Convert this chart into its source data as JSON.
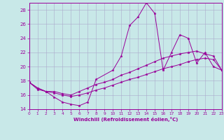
{
  "xlabel": "Windchill (Refroidissement éolien,°C)",
  "bg_color": "#c8e8e8",
  "line_color": "#990099",
  "grid_color": "#aaaacc",
  "xlim": [
    0,
    23
  ],
  "ylim": [
    14,
    29
  ],
  "yticks": [
    14,
    16,
    18,
    20,
    22,
    24,
    26,
    28
  ],
  "xticks": [
    0,
    1,
    2,
    3,
    4,
    5,
    6,
    7,
    8,
    9,
    10,
    11,
    12,
    13,
    14,
    15,
    16,
    17,
    18,
    19,
    20,
    21,
    22,
    23
  ],
  "series": [
    {
      "x": [
        0,
        1,
        2,
        3,
        4,
        5,
        6,
        7,
        8,
        10,
        11,
        12,
        13,
        14,
        15,
        16,
        17,
        18,
        19,
        20,
        21,
        22,
        23
      ],
      "y": [
        17.8,
        17.0,
        16.5,
        15.7,
        15.0,
        14.7,
        14.5,
        15.0,
        18.2,
        19.5,
        21.5,
        25.8,
        27.0,
        29.0,
        27.5,
        19.5,
        22.0,
        24.5,
        24.0,
        20.5,
        22.0,
        20.0,
        19.5
      ]
    },
    {
      "x": [
        0,
        1,
        2,
        3,
        4,
        5,
        6,
        7,
        8,
        9,
        10,
        11,
        12,
        13,
        14,
        15,
        16,
        17,
        18,
        19,
        20,
        21,
        22,
        23
      ],
      "y": [
        17.8,
        17.0,
        16.5,
        16.5,
        16.2,
        16.0,
        16.5,
        17.0,
        17.5,
        17.8,
        18.2,
        18.8,
        19.2,
        19.7,
        20.2,
        20.7,
        21.2,
        21.5,
        21.8,
        22.0,
        22.2,
        21.8,
        21.5,
        19.5
      ]
    },
    {
      "x": [
        0,
        1,
        2,
        3,
        4,
        5,
        6,
        7,
        8,
        9,
        10,
        11,
        12,
        13,
        14,
        15,
        16,
        17,
        18,
        19,
        20,
        21,
        22,
        23
      ],
      "y": [
        17.8,
        16.8,
        16.5,
        16.3,
        16.0,
        15.8,
        16.0,
        16.3,
        16.7,
        17.0,
        17.4,
        17.8,
        18.2,
        18.5,
        18.9,
        19.3,
        19.7,
        20.0,
        20.3,
        20.7,
        21.0,
        21.2,
        21.0,
        19.5
      ]
    }
  ]
}
